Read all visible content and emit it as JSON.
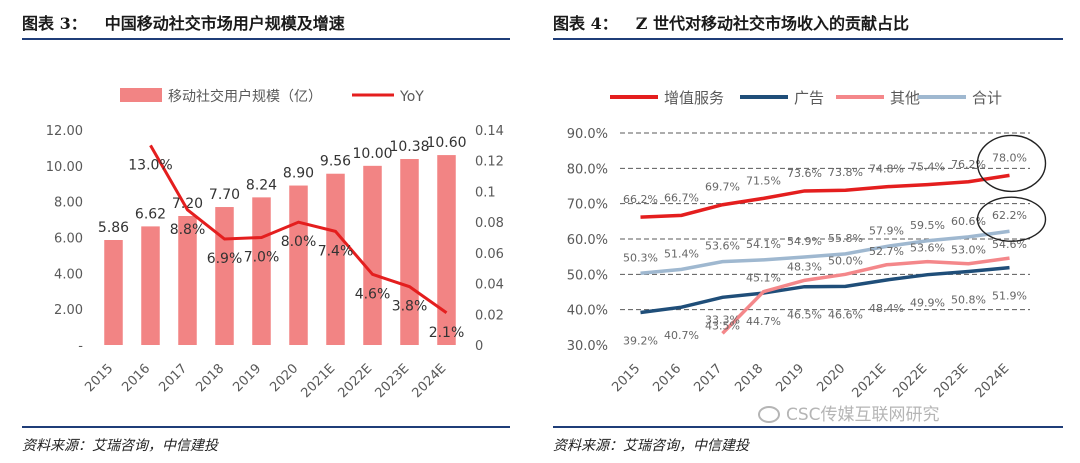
{
  "left_panel": {
    "label": "图表 3：",
    "title": "中国移动社交市场用户规模及增速",
    "source": "资料来源：艾瑞咨询，中信建投"
  },
  "right_panel": {
    "label": "图表 4：",
    "title": "Z 世代对移动社交市场收入的贡献占比",
    "source": "资料来源：艾瑞咨询，中信建投"
  },
  "watermark": "CSC传媒互联网研究",
  "colors": {
    "bar": "#f28484",
    "red": "#e41e1e",
    "navy": "#1f4e79",
    "pink": "#f4878a",
    "lightblue": "#9fb8d0",
    "axis": "#595959",
    "grid": "#595959",
    "rule": "#1f3d78"
  },
  "chart_data": [
    {
      "type": "bar",
      "categories": [
        "2015",
        "2016",
        "2017",
        "2018",
        "2019",
        "2020",
        "2021E",
        "2022E",
        "2023E",
        "2024E"
      ],
      "series": [
        {
          "name": "移动社交用户规模（亿）",
          "type": "bar",
          "axis": "left",
          "values": [
            5.86,
            6.62,
            7.2,
            7.7,
            8.24,
            8.9,
            9.56,
            10.0,
            10.38,
            10.6
          ],
          "labels": [
            "5.86",
            "6.62",
            "7.20",
            "7.70",
            "8.24",
            "8.90",
            "9.56",
            "10.00",
            "10.38",
            "10.60"
          ]
        },
        {
          "name": "YoY",
          "type": "line",
          "axis": "right",
          "values": [
            null,
            0.13,
            0.088,
            0.069,
            0.07,
            0.08,
            0.074,
            0.046,
            0.038,
            0.021
          ],
          "labels": [
            "",
            "13.0%",
            "8.8%",
            "6.9%",
            "7.0%",
            "8.0%",
            "7.4%",
            "4.6%",
            "3.8%",
            "2.1%"
          ]
        }
      ],
      "ylim_left": [
        0,
        12
      ],
      "yticks_left": [
        "-",
        "2.00",
        "4.00",
        "6.00",
        "8.00",
        "10.00",
        "12.00"
      ],
      "ylim_right": [
        0,
        0.14
      ],
      "yticks_right": [
        "0",
        "0.02",
        "0.04",
        "0.06",
        "0.08",
        "0.1",
        "0.12",
        "0.14"
      ],
      "legend": "top",
      "grid": false
    },
    {
      "type": "line",
      "categories": [
        "2015",
        "2016",
        "2017",
        "2018",
        "2019",
        "2020",
        "2021E",
        "2022E",
        "2023E",
        "2024E"
      ],
      "series": [
        {
          "name": "增值服务",
          "color": "red",
          "values": [
            66.2,
            66.7,
            69.7,
            71.5,
            73.6,
            73.8,
            74.8,
            75.4,
            76.2,
            78.0
          ],
          "labels": [
            "66.2%",
            "66.7%",
            "69.7%",
            "71.5%",
            "73.6%",
            "73.8%",
            "74.8%",
            "75.4%",
            "76.2%",
            "78.0%"
          ]
        },
        {
          "name": "广告",
          "color": "navy",
          "values": [
            39.2,
            40.7,
            43.5,
            44.7,
            46.5,
            46.6,
            48.4,
            49.9,
            50.8,
            51.9
          ],
          "labels": [
            "39.2%",
            "40.7%",
            "43.5%",
            "44.7%",
            "46.5%",
            "46.6%",
            "48.4%",
            "49.9%",
            "50.8%",
            "51.9%"
          ]
        },
        {
          "name": "其他",
          "color": "pink",
          "values": [
            null,
            null,
            33.3,
            45.1,
            48.3,
            50.0,
            52.7,
            53.6,
            53.0,
            54.6
          ],
          "labels": [
            "",
            "",
            "33.3%",
            "45.1%",
            "48.3%",
            "50.0%",
            "52.7%",
            "53.6%",
            "53.0%",
            "54.6%"
          ]
        },
        {
          "name": "合计",
          "color": "lightblue",
          "values": [
            50.3,
            51.4,
            53.6,
            54.1,
            54.9,
            55.8,
            57.9,
            59.5,
            60.6,
            62.2
          ],
          "labels": [
            "50.3%",
            "51.4%",
            "53.6%",
            "54.1%",
            "54.9%",
            "55.8%",
            "57.9%",
            "59.5%",
            "60.6%",
            "62.2%"
          ]
        }
      ],
      "ylim": [
        30,
        90
      ],
      "yticks": [
        "30.0%",
        "40.0%",
        "50.0%",
        "60.0%",
        "70.0%",
        "80.0%",
        "90.0%"
      ],
      "legend": "top",
      "grid": true,
      "annotations": [
        "circle around 78.0%",
        "circle around 62.2%"
      ]
    }
  ]
}
